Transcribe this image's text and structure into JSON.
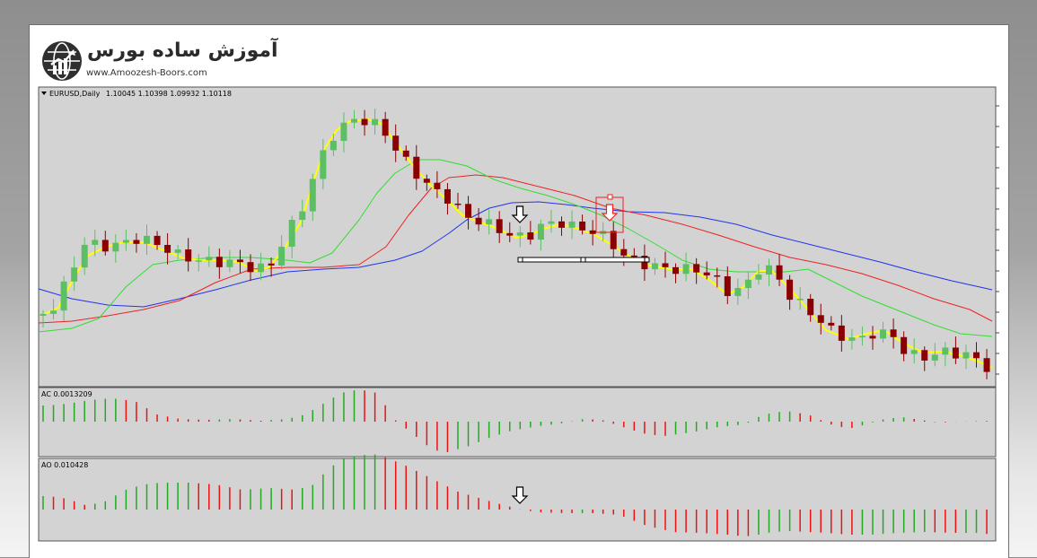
{
  "brand": {
    "name_fa": "آموزش ساده بورس",
    "url": "www.Amoozesh-Boors.com",
    "logo_icon": "globe-chart-icon"
  },
  "colors": {
    "chart_bg": "#d3d3d3",
    "bull_candle": "#5dbf64",
    "bear_candle": "#8b0000",
    "ma_yellow": "#ffff00",
    "ma_green": "#33dd33",
    "ma_red": "#ee2222",
    "ma_blue": "#2233ee",
    "osc_up": "#22aa22",
    "osc_down": "#ee1111",
    "highlight_arrow": "#ee2222"
  },
  "chart_data": [
    {
      "type": "candlestick",
      "title": "EURUSD,Daily",
      "ohlc_label": "1.10045 1.10398 1.09932 1.10118",
      "legend": "none",
      "grid": false,
      "overlays": [
        "yellow moving average",
        "green moving average",
        "red moving average",
        "blue moving average"
      ],
      "annotations": [
        "black down arrow at entry candle",
        "red highlighted down arrow",
        "horizontal range bar"
      ]
    },
    {
      "type": "bar",
      "title": "AC 0.0013209",
      "indicator": "Accelerator Oscillator",
      "ylim": [
        -0.006,
        0.006
      ]
    },
    {
      "type": "bar",
      "title": "AO 0.010428",
      "indicator": "Awesome Oscillator",
      "ylim": [
        -0.015,
        0.02
      ]
    }
  ]
}
